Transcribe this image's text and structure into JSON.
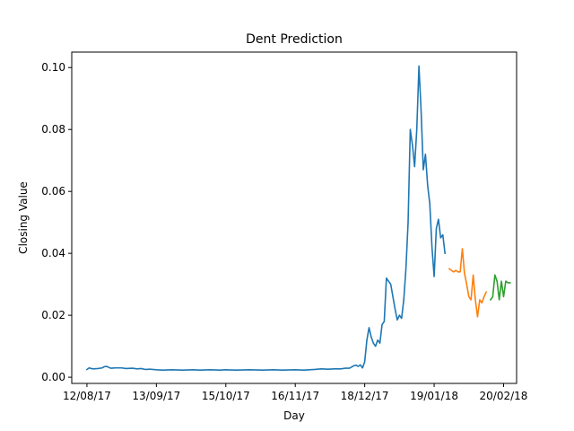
{
  "chart_data": {
    "type": "line",
    "title": "Dent Prediction",
    "xlabel": "Day",
    "ylabel": "Closing Value",
    "x_axis": {
      "kind": "date",
      "format": "DD/MM/YY",
      "range": [
        "2017-08-05",
        "2018-02-26"
      ],
      "ticks": [
        {
          "date": "2017-08-12",
          "label": "12/08/17"
        },
        {
          "date": "2017-09-13",
          "label": "13/09/17"
        },
        {
          "date": "2017-10-15",
          "label": "15/10/17"
        },
        {
          "date": "2017-11-16",
          "label": "16/11/17"
        },
        {
          "date": "2017-12-18",
          "label": "18/12/17"
        },
        {
          "date": "2018-01-19",
          "label": "19/01/18"
        },
        {
          "date": "2018-02-20",
          "label": "20/02/18"
        }
      ]
    },
    "y_axis": {
      "range": [
        -0.002,
        0.105
      ],
      "ticks": [
        0.0,
        0.02,
        0.04,
        0.06,
        0.08,
        0.1
      ],
      "tick_labels": [
        "0.00",
        "0.02",
        "0.04",
        "0.06",
        "0.08",
        "0.10"
      ]
    },
    "grid": false,
    "legend": "none",
    "series": [
      {
        "color": "#1f77b4",
        "points": [
          [
            "2017-08-12",
            0.0025
          ],
          [
            "2017-08-13",
            0.003
          ],
          [
            "2017-08-14",
            0.0028
          ],
          [
            "2017-08-15",
            0.0027
          ],
          [
            "2017-08-17",
            0.0028
          ],
          [
            "2017-08-19",
            0.003
          ],
          [
            "2017-08-20",
            0.0034
          ],
          [
            "2017-08-21",
            0.0035
          ],
          [
            "2017-08-22",
            0.0032
          ],
          [
            "2017-08-23",
            0.0029
          ],
          [
            "2017-08-25",
            0.003
          ],
          [
            "2017-08-28",
            0.003
          ],
          [
            "2017-08-30",
            0.0028
          ],
          [
            "2017-09-02",
            0.0029
          ],
          [
            "2017-09-04",
            0.0027
          ],
          [
            "2017-09-06",
            0.0028
          ],
          [
            "2017-09-08",
            0.0025
          ],
          [
            "2017-09-10",
            0.0026
          ],
          [
            "2017-09-13",
            0.0024
          ],
          [
            "2017-09-16",
            0.0023
          ],
          [
            "2017-09-20",
            0.0024
          ],
          [
            "2017-09-25",
            0.0023
          ],
          [
            "2017-09-30",
            0.0024
          ],
          [
            "2017-10-03",
            0.0023
          ],
          [
            "2017-10-08",
            0.0024
          ],
          [
            "2017-10-12",
            0.0023
          ],
          [
            "2017-10-15",
            0.0024
          ],
          [
            "2017-10-20",
            0.0023
          ],
          [
            "2017-10-26",
            0.0024
          ],
          [
            "2017-11-01",
            0.0023
          ],
          [
            "2017-11-06",
            0.0024
          ],
          [
            "2017-11-10",
            0.0023
          ],
          [
            "2017-11-16",
            0.0024
          ],
          [
            "2017-11-20",
            0.0023
          ],
          [
            "2017-11-25",
            0.0025
          ],
          [
            "2017-11-28",
            0.0027
          ],
          [
            "2017-12-01",
            0.0026
          ],
          [
            "2017-12-04",
            0.0027
          ],
          [
            "2017-12-07",
            0.0027
          ],
          [
            "2017-12-09",
            0.0029
          ],
          [
            "2017-12-11",
            0.0029
          ],
          [
            "2017-12-12",
            0.0033
          ],
          [
            "2017-12-13",
            0.0037
          ],
          [
            "2017-12-14",
            0.0039
          ],
          [
            "2017-12-15",
            0.0035
          ],
          [
            "2017-12-16",
            0.004
          ],
          [
            "2017-12-17",
            0.003
          ],
          [
            "2017-12-18",
            0.005
          ],
          [
            "2017-12-19",
            0.012
          ],
          [
            "2017-12-20",
            0.016
          ],
          [
            "2017-12-21",
            0.013
          ],
          [
            "2017-12-22",
            0.011
          ],
          [
            "2017-12-23",
            0.01
          ],
          [
            "2017-12-24",
            0.012
          ],
          [
            "2017-12-25",
            0.011
          ],
          [
            "2017-12-26",
            0.017
          ],
          [
            "2017-12-27",
            0.018
          ],
          [
            "2017-12-28",
            0.032
          ],
          [
            "2017-12-29",
            0.031
          ],
          [
            "2017-12-30",
            0.03
          ],
          [
            "2017-12-31",
            0.026
          ],
          [
            "2018-01-01",
            0.022
          ],
          [
            "2018-01-02",
            0.0185
          ],
          [
            "2018-01-03",
            0.02
          ],
          [
            "2018-01-04",
            0.019
          ],
          [
            "2018-01-05",
            0.025
          ],
          [
            "2018-01-06",
            0.035
          ],
          [
            "2018-01-07",
            0.05
          ],
          [
            "2018-01-08",
            0.08
          ],
          [
            "2018-01-09",
            0.075
          ],
          [
            "2018-01-10",
            0.068
          ],
          [
            "2018-01-11",
            0.08
          ],
          [
            "2018-01-12",
            0.1005
          ],
          [
            "2018-01-13",
            0.086
          ],
          [
            "2018-01-14",
            0.067
          ],
          [
            "2018-01-15",
            0.072
          ],
          [
            "2018-01-16",
            0.062
          ],
          [
            "2018-01-17",
            0.056
          ],
          [
            "2018-01-18",
            0.042
          ],
          [
            "2018-01-19",
            0.0325
          ],
          [
            "2018-01-20",
            0.048
          ],
          [
            "2018-01-21",
            0.051
          ],
          [
            "2018-01-22",
            0.045
          ],
          [
            "2018-01-23",
            0.046
          ],
          [
            "2018-01-24",
            0.04
          ]
        ]
      },
      {
        "color": "#ff7f0e",
        "points": [
          [
            "2018-01-26",
            0.035
          ],
          [
            "2018-01-27",
            0.0345
          ],
          [
            "2018-01-28",
            0.034
          ],
          [
            "2018-01-29",
            0.0345
          ],
          [
            "2018-01-30",
            0.034
          ],
          [
            "2018-01-31",
            0.034
          ],
          [
            "2018-02-01",
            0.0415
          ],
          [
            "2018-02-02",
            0.0335
          ],
          [
            "2018-02-03",
            0.03
          ],
          [
            "2018-02-04",
            0.026
          ],
          [
            "2018-02-05",
            0.025
          ],
          [
            "2018-02-06",
            0.033
          ],
          [
            "2018-02-07",
            0.025
          ],
          [
            "2018-02-08",
            0.0195
          ],
          [
            "2018-02-09",
            0.025
          ],
          [
            "2018-02-10",
            0.024
          ],
          [
            "2018-02-11",
            0.026
          ],
          [
            "2018-02-12",
            0.0275
          ]
        ]
      },
      {
        "color": "#2ca02c",
        "points": [
          [
            "2018-02-14",
            0.025
          ],
          [
            "2018-02-15",
            0.026
          ],
          [
            "2018-02-16",
            0.033
          ],
          [
            "2018-02-17",
            0.031
          ],
          [
            "2018-02-18",
            0.025
          ],
          [
            "2018-02-19",
            0.031
          ],
          [
            "2018-02-20",
            0.026
          ],
          [
            "2018-02-21",
            0.031
          ],
          [
            "2018-02-22",
            0.0305
          ],
          [
            "2018-02-23",
            0.0305
          ]
        ]
      }
    ]
  }
}
